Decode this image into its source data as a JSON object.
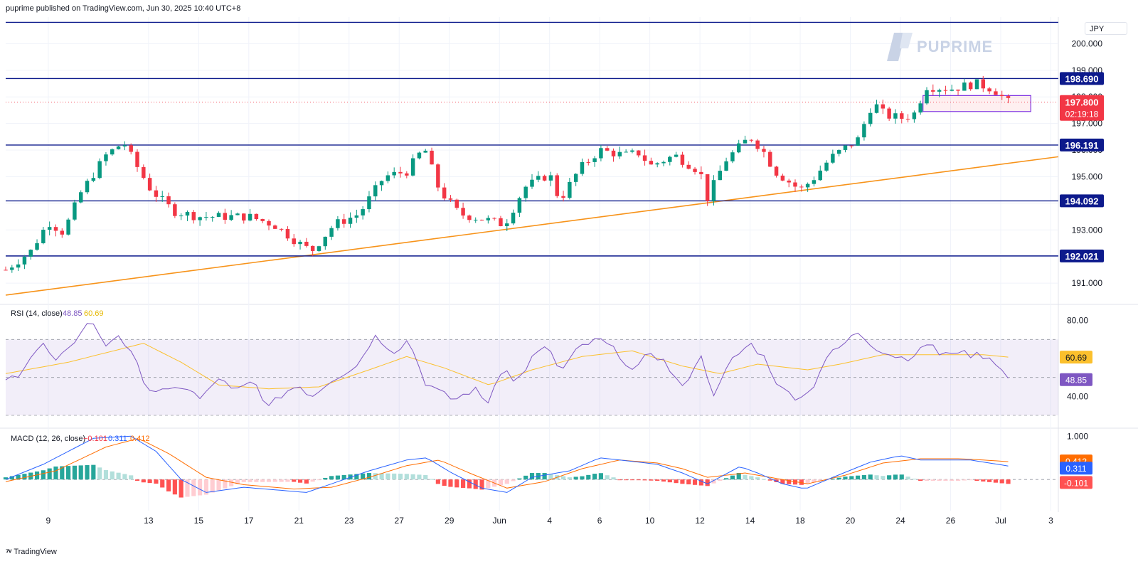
{
  "header": {
    "published": "puprime published on TradingView.com, Jun 30, 2025 10:40 UTC+8"
  },
  "footer": {
    "brand": "TradingView"
  },
  "watermark": {
    "brand": "PUPRIME"
  },
  "currency": "JPY",
  "colors": {
    "up": "#089981",
    "down": "#f23645",
    "level": "#0d1a8c",
    "trend": "#f7931a",
    "rsi": "#7e57c2",
    "rsi_ma": "#fbc02d",
    "macd": "#2962ff",
    "signal": "#ff6d00"
  },
  "chart_data": [
    {
      "type": "candlestick",
      "name": "price",
      "ylim": [
        190.2,
        201.0
      ],
      "y_ticks": [
        191.0,
        192.0,
        193.0,
        194.0,
        195.0,
        196.0,
        197.0,
        198.0,
        199.0,
        200.0
      ],
      "x_ticks": [
        {
          "label": "9",
          "x": 2.2
        },
        {
          "label": "13",
          "x": 6.2
        },
        {
          "label": "15",
          "x": 8.2
        },
        {
          "label": "17",
          "x": 10.2
        },
        {
          "label": "21",
          "x": 12.2
        },
        {
          "label": "23",
          "x": 14.2
        },
        {
          "label": "27",
          "x": 16.2
        },
        {
          "label": "29",
          "x": 18.2
        },
        {
          "label": "Jun",
          "x": 20.2
        },
        {
          "label": "4",
          "x": 22.2
        },
        {
          "label": "6",
          "x": 24.2
        },
        {
          "label": "10",
          "x": 26.2
        },
        {
          "label": "12",
          "x": 28.2
        },
        {
          "label": "14",
          "x": 30.2
        },
        {
          "label": "18",
          "x": 32.2
        },
        {
          "label": "20",
          "x": 34.2
        },
        {
          "label": "24",
          "x": 36.2
        },
        {
          "label": "26",
          "x": 38.2
        },
        {
          "label": "Jul",
          "x": 40.2
        },
        {
          "label": "3",
          "x": 42.2
        }
      ],
      "x_range": [
        0.5,
        42.5
      ],
      "levels": [
        {
          "value": 200.8,
          "label": ""
        },
        {
          "value": 198.69,
          "label": "198.690"
        },
        {
          "value": 196.191,
          "label": "196.191"
        },
        {
          "value": 194.092,
          "label": "194.092"
        },
        {
          "value": 192.021,
          "label": "192.021"
        }
      ],
      "trendline": {
        "x1": 0.5,
        "y1": 190.55,
        "x2": 42.5,
        "y2": 195.75
      },
      "last_price": {
        "value": 197.8,
        "label": "197.800",
        "countdown": "02:19:18"
      },
      "box": {
        "x1": 37.1,
        "x2": 41.4,
        "y1": 197.45,
        "y2": 198.05
      },
      "anchors": [
        [
          0.5,
          191.5
        ],
        [
          1.5,
          192.2
        ],
        [
          2.2,
          193.3
        ],
        [
          2.8,
          192.9
        ],
        [
          3.5,
          194.4
        ],
        [
          4.5,
          195.8
        ],
        [
          5.2,
          196.3
        ],
        [
          5.6,
          195.6
        ],
        [
          6.3,
          194.5
        ],
        [
          7.2,
          193.7
        ],
        [
          8.2,
          193.5
        ],
        [
          9.2,
          193.5
        ],
        [
          10.2,
          193.5
        ],
        [
          11.2,
          193.2
        ],
        [
          12.2,
          192.5
        ],
        [
          12.7,
          192.2
        ],
        [
          13.6,
          193.2
        ],
        [
          14.6,
          193.6
        ],
        [
          15.6,
          195.0
        ],
        [
          16.5,
          195.2
        ],
        [
          17.2,
          196.1
        ],
        [
          17.8,
          194.5
        ],
        [
          18.6,
          193.6
        ],
        [
          19.6,
          193.4
        ],
        [
          20.4,
          193.2
        ],
        [
          21.2,
          194.6
        ],
        [
          22.2,
          195.1
        ],
        [
          22.6,
          194.1
        ],
        [
          23.4,
          195.3
        ],
        [
          24.2,
          196.0
        ],
        [
          25.2,
          195.8
        ],
        [
          25.8,
          195.9
        ],
        [
          26.2,
          195.4
        ],
        [
          27.2,
          195.8
        ],
        [
          28.2,
          195.2
        ],
        [
          28.5,
          194.2
        ],
        [
          29.2,
          195.6
        ],
        [
          30.2,
          196.5
        ],
        [
          30.7,
          196.0
        ],
        [
          31.2,
          195.2
        ],
        [
          32.2,
          194.5
        ],
        [
          32.7,
          194.9
        ],
        [
          33.4,
          195.7
        ],
        [
          34.5,
          196.4
        ],
        [
          35.1,
          197.8
        ],
        [
          35.6,
          197.3
        ],
        [
          36.3,
          197.2
        ],
        [
          36.8,
          197.4
        ],
        [
          37.2,
          198.4
        ],
        [
          38.2,
          198.3
        ],
        [
          39.2,
          198.5
        ],
        [
          39.9,
          198.3
        ],
        [
          40.5,
          197.8
        ]
      ]
    },
    {
      "type": "line",
      "name": "RSI",
      "title": "RSI (14, close)",
      "legend_values": [
        "48.85",
        "60.69"
      ],
      "ylim": [
        24,
        87
      ],
      "y_ticks": [
        40.0,
        60.0,
        80.0
      ],
      "bands": [
        30,
        50,
        70
      ],
      "x_range": [
        0.5,
        42.5
      ],
      "rsi_anchors": [
        [
          0.5,
          48
        ],
        [
          1.0,
          52
        ],
        [
          1.6,
          63
        ],
        [
          2.0,
          67
        ],
        [
          2.5,
          58
        ],
        [
          3.0,
          64
        ],
        [
          3.6,
          77
        ],
        [
          4.0,
          79
        ],
        [
          4.4,
          66
        ],
        [
          5.0,
          73
        ],
        [
          5.6,
          60
        ],
        [
          6.2,
          44
        ],
        [
          7.0,
          42
        ],
        [
          7.6,
          46
        ],
        [
          8.3,
          38
        ],
        [
          9.0,
          50
        ],
        [
          9.6,
          42
        ],
        [
          10.4,
          48
        ],
        [
          11.0,
          34
        ],
        [
          11.6,
          42
        ],
        [
          12.2,
          46
        ],
        [
          12.7,
          40
        ],
        [
          13.5,
          49
        ],
        [
          14.5,
          56
        ],
        [
          15.2,
          72
        ],
        [
          16.0,
          64
        ],
        [
          16.6,
          70
        ],
        [
          17.2,
          48
        ],
        [
          17.8,
          42
        ],
        [
          18.4,
          38
        ],
        [
          19.2,
          44
        ],
        [
          19.7,
          36
        ],
        [
          20.4,
          58
        ],
        [
          20.8,
          46
        ],
        [
          21.6,
          62
        ],
        [
          22.2,
          66
        ],
        [
          22.6,
          52
        ],
        [
          23.4,
          66
        ],
        [
          24.2,
          70
        ],
        [
          25.0,
          62
        ],
        [
          25.6,
          52
        ],
        [
          26.2,
          64
        ],
        [
          26.8,
          58
        ],
        [
          27.5,
          44
        ],
        [
          28.2,
          62
        ],
        [
          28.8,
          40
        ],
        [
          29.4,
          58
        ],
        [
          30.2,
          68
        ],
        [
          30.8,
          60
        ],
        [
          31.4,
          44
        ],
        [
          32.0,
          40
        ],
        [
          32.6,
          42
        ],
        [
          33.2,
          60
        ],
        [
          33.8,
          66
        ],
        [
          34.5,
          74
        ],
        [
          35.2,
          66
        ],
        [
          35.8,
          62
        ],
        [
          36.4,
          60
        ],
        [
          37.0,
          64
        ],
        [
          37.4,
          70
        ],
        [
          37.8,
          60
        ],
        [
          38.4,
          65
        ],
        [
          38.8,
          62
        ],
        [
          39.4,
          62
        ],
        [
          39.9,
          60
        ],
        [
          40.5,
          49
        ]
      ],
      "rsi_ma_anchors": [
        [
          0.5,
          52
        ],
        [
          3.0,
          58
        ],
        [
          6.0,
          68
        ],
        [
          7.5,
          58
        ],
        [
          9.0,
          46
        ],
        [
          11.0,
          44
        ],
        [
          13.0,
          45
        ],
        [
          15.0,
          54
        ],
        [
          16.5,
          61
        ],
        [
          18.0,
          55
        ],
        [
          19.8,
          46
        ],
        [
          21.5,
          54
        ],
        [
          23.5,
          61
        ],
        [
          25.5,
          64
        ],
        [
          27.5,
          56
        ],
        [
          29.0,
          52
        ],
        [
          30.5,
          57
        ],
        [
          32.5,
          54
        ],
        [
          33.8,
          57
        ],
        [
          35.5,
          62
        ],
        [
          38.0,
          62
        ],
        [
          39.5,
          62
        ],
        [
          40.5,
          60.7
        ]
      ]
    },
    {
      "type": "bar",
      "name": "MACD",
      "title": "MACD (12, 26, close)",
      "legend_values": [
        "−0.101",
        "0.311",
        "0.412"
      ],
      "ylim": [
        -0.72,
        1.12
      ],
      "y_ticks": [
        1.0
      ],
      "x_range": [
        0.5,
        42.5
      ],
      "value_labels": {
        "signal": "0.412",
        "macd": "0.311",
        "hist": "-0.101"
      },
      "macd_anchors": [
        [
          0.5,
          0.0
        ],
        [
          2.0,
          0.35
        ],
        [
          4.0,
          0.95
        ],
        [
          5.5,
          1.0
        ],
        [
          6.5,
          0.65
        ],
        [
          7.5,
          0.0
        ],
        [
          8.5,
          -0.3
        ],
        [
          10.0,
          -0.18
        ],
        [
          11.5,
          -0.25
        ],
        [
          12.5,
          -0.3
        ],
        [
          13.5,
          -0.1
        ],
        [
          15.0,
          0.2
        ],
        [
          16.5,
          0.45
        ],
        [
          17.3,
          0.5
        ],
        [
          18.3,
          0.15
        ],
        [
          19.5,
          -0.2
        ],
        [
          20.5,
          -0.3
        ],
        [
          21.5,
          0.05
        ],
        [
          23.0,
          0.2
        ],
        [
          24.2,
          0.5
        ],
        [
          25.0,
          0.45
        ],
        [
          26.5,
          0.35
        ],
        [
          27.5,
          0.15
        ],
        [
          28.5,
          -0.1
        ],
        [
          29.8,
          0.3
        ],
        [
          30.5,
          0.15
        ],
        [
          31.5,
          -0.1
        ],
        [
          32.4,
          -0.22
        ],
        [
          33.5,
          0.05
        ],
        [
          35.0,
          0.4
        ],
        [
          36.2,
          0.55
        ],
        [
          37.0,
          0.45
        ],
        [
          38.0,
          0.45
        ],
        [
          39.0,
          0.45
        ],
        [
          40.5,
          0.311
        ]
      ],
      "signal_anchors": [
        [
          0.5,
          -0.05
        ],
        [
          2.5,
          0.2
        ],
        [
          4.5,
          0.75
        ],
        [
          5.8,
          0.95
        ],
        [
          7.0,
          0.6
        ],
        [
          8.5,
          0.05
        ],
        [
          10.0,
          -0.12
        ],
        [
          12.0,
          -0.22
        ],
        [
          13.5,
          -0.18
        ],
        [
          15.0,
          0.05
        ],
        [
          16.5,
          0.32
        ],
        [
          17.8,
          0.45
        ],
        [
          19.0,
          0.15
        ],
        [
          20.5,
          -0.2
        ],
        [
          22.0,
          -0.05
        ],
        [
          23.5,
          0.25
        ],
        [
          25.0,
          0.45
        ],
        [
          26.5,
          0.38
        ],
        [
          27.5,
          0.25
        ],
        [
          28.5,
          0.05
        ],
        [
          30.0,
          0.15
        ],
        [
          31.5,
          0.0
        ],
        [
          32.5,
          -0.1
        ],
        [
          34.0,
          0.1
        ],
        [
          35.5,
          0.38
        ],
        [
          37.0,
          0.48
        ],
        [
          38.5,
          0.48
        ],
        [
          39.5,
          0.45
        ],
        [
          40.5,
          0.412
        ]
      ]
    }
  ]
}
